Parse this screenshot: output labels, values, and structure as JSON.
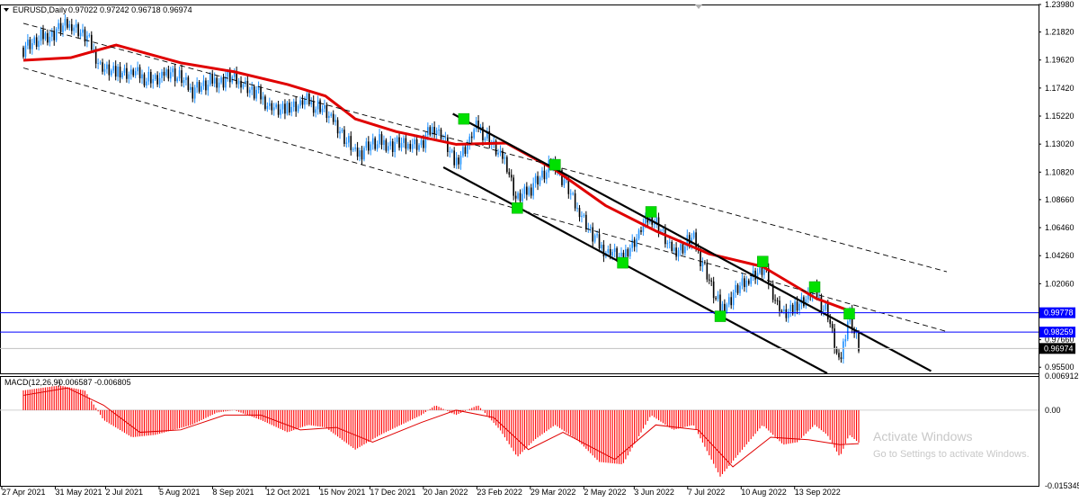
{
  "header": {
    "symbol": "EURUSD,Daily",
    "ohlc": "0.97022 0.97242 0.96718 0.96974"
  },
  "macd_header": {
    "label": "MACD(12,26,9)",
    "values": "-0.006587 -0.006805"
  },
  "watermark": {
    "title": "Activate Windows",
    "subtitle": "Go to Settings to activate Windows."
  },
  "colors": {
    "bull_candle": "#1e90ff",
    "bear_candle": "#000000",
    "moving_average": "#e00000",
    "macd_histogram": "#ff0000",
    "signal_line": "#e00000",
    "level_lines": "#0000ff",
    "markers": "#00e000"
  },
  "chart_data": [
    {
      "type": "candlestick",
      "title": "EURUSD,Daily",
      "x_tick_labels": [
        "27 Apr 2021",
        "31 May 2021",
        "2 Jul 2021",
        "5 Aug 2021",
        "8 Sep 2021",
        "12 Oct 2021",
        "15 Nov 2021",
        "17 Dec 2021",
        "20 Jan 2022",
        "23 Feb 2022",
        "29 Mar 2022",
        "2 May 2022",
        "3 Jun 2022",
        "7 Jul 2022",
        "10 Aug 2022",
        "13 Sep 2022"
      ],
      "y_tick_labels": [
        "1.23980",
        "1.21820",
        "1.19620",
        "1.17420",
        "1.15220",
        "1.13020",
        "1.10820",
        "1.08660",
        "1.06460",
        "1.04260",
        "1.02060",
        "0.99860",
        "0.97660",
        "0.95500"
      ],
      "ylim": [
        0.9502,
        1.2398
      ],
      "current_price": 0.96974,
      "price_labels": [
        "0.99778",
        "0.98259",
        "0.96974"
      ],
      "horizontal_levels": [
        0.99778,
        0.98259
      ],
      "close_path": [
        {
          "x": "2021-04-27",
          "y": 1.206
        },
        {
          "x": "2021-05-20",
          "y": 1.22
        },
        {
          "x": "2021-05-25",
          "y": 1.225
        },
        {
          "x": "2021-06-05",
          "y": 1.216
        },
        {
          "x": "2021-06-17",
          "y": 1.188
        },
        {
          "x": "2021-07-05",
          "y": 1.186
        },
        {
          "x": "2021-07-20",
          "y": 1.18
        },
        {
          "x": "2021-07-30",
          "y": 1.188
        },
        {
          "x": "2021-08-12",
          "y": 1.173
        },
        {
          "x": "2021-08-28",
          "y": 1.18
        },
        {
          "x": "2021-09-08",
          "y": 1.182
        },
        {
          "x": "2021-09-22",
          "y": 1.17
        },
        {
          "x": "2021-10-05",
          "y": 1.156
        },
        {
          "x": "2021-10-25",
          "y": 1.164
        },
        {
          "x": "2021-11-05",
          "y": 1.156
        },
        {
          "x": "2021-11-15",
          "y": 1.14
        },
        {
          "x": "2021-11-24",
          "y": 1.122
        },
        {
          "x": "2021-12-05",
          "y": 1.131
        },
        {
          "x": "2021-12-20",
          "y": 1.13
        },
        {
          "x": "2022-01-05",
          "y": 1.13
        },
        {
          "x": "2022-01-14",
          "y": 1.145
        },
        {
          "x": "2022-01-27",
          "y": 1.115
        },
        {
          "x": "2022-02-10",
          "y": 1.145
        },
        {
          "x": "2022-02-28",
          "y": 1.115
        },
        {
          "x": "2022-03-07",
          "y": 1.085
        },
        {
          "x": "2022-03-18",
          "y": 1.1
        },
        {
          "x": "2022-03-31",
          "y": 1.115
        },
        {
          "x": "2022-04-14",
          "y": 1.08
        },
        {
          "x": "2022-04-28",
          "y": 1.05
        },
        {
          "x": "2022-05-13",
          "y": 1.04
        },
        {
          "x": "2022-05-31",
          "y": 1.075
        },
        {
          "x": "2022-06-14",
          "y": 1.045
        },
        {
          "x": "2022-06-27",
          "y": 1.056
        },
        {
          "x": "2022-07-14",
          "y": 1.0
        },
        {
          "x": "2022-07-28",
          "y": 1.02
        },
        {
          "x": "2022-08-10",
          "y": 1.033
        },
        {
          "x": "2022-08-23",
          "y": 0.995
        },
        {
          "x": "2022-09-12",
          "y": 1.015
        },
        {
          "x": "2022-09-20",
          "y": 0.998
        },
        {
          "x": "2022-09-28",
          "y": 0.956
        },
        {
          "x": "2022-10-04",
          "y": 0.999
        },
        {
          "x": "2022-10-10",
          "y": 0.9697
        }
      ],
      "moving_average": [
        {
          "x": "2021-04-27",
          "y": 1.196
        },
        {
          "x": "2021-05-27",
          "y": 1.198
        },
        {
          "x": "2021-06-25",
          "y": 1.208
        },
        {
          "x": "2021-08-05",
          "y": 1.194
        },
        {
          "x": "2021-09-08",
          "y": 1.187
        },
        {
          "x": "2021-10-12",
          "y": 1.177
        },
        {
          "x": "2021-11-05",
          "y": 1.168
        },
        {
          "x": "2021-11-24",
          "y": 1.15
        },
        {
          "x": "2021-12-20",
          "y": 1.14
        },
        {
          "x": "2022-01-27",
          "y": 1.13
        },
        {
          "x": "2022-02-28",
          "y": 1.131
        },
        {
          "x": "2022-03-31",
          "y": 1.11
        },
        {
          "x": "2022-05-02",
          "y": 1.082
        },
        {
          "x": "2022-06-03",
          "y": 1.062
        },
        {
          "x": "2022-07-07",
          "y": 1.044
        },
        {
          "x": "2022-08-10",
          "y": 1.034
        },
        {
          "x": "2022-09-13",
          "y": 1.009
        },
        {
          "x": "2022-10-07",
          "y": 0.998
        }
      ],
      "channel_lines": [
        {
          "style": "dashed",
          "start": {
            "x": "2021-04-27",
            "y": 1.225
          },
          "end": {
            "x": "2022-12-05",
            "y": 1.03
          }
        },
        {
          "style": "dashed",
          "start": {
            "x": "2021-04-27",
            "y": 1.19
          },
          "end": {
            "x": "2022-12-05",
            "y": 0.983
          }
        },
        {
          "style": "solid",
          "start": {
            "x": "2022-01-25",
            "y": 1.154
          },
          "end": {
            "x": "2022-11-25",
            "y": 0.952
          }
        },
        {
          "style": "solid",
          "start": {
            "x": "2022-01-19",
            "y": 1.112
          },
          "end": {
            "x": "2022-09-20",
            "y": 0.9502
          }
        }
      ],
      "markers": [
        {
          "x": "2022-02-01",
          "y": 1.15
        },
        {
          "x": "2022-03-07",
          "y": 1.08
        },
        {
          "x": "2022-03-31",
          "y": 1.114
        },
        {
          "x": "2022-05-13",
          "y": 1.037
        },
        {
          "x": "2022-05-31",
          "y": 1.077
        },
        {
          "x": "2022-07-14",
          "y": 0.995
        },
        {
          "x": "2022-08-10",
          "y": 1.038
        },
        {
          "x": "2022-09-12",
          "y": 1.018
        },
        {
          "x": "2022-10-04",
          "y": 0.997
        }
      ]
    },
    {
      "type": "bar",
      "title": "MACD(12,26,9)",
      "y_tick_labels": [
        "0.006912",
        "0.00",
        "-0.015345"
      ],
      "ylim": [
        -0.015345,
        0.006912
      ],
      "histogram_path": [
        {
          "x": "2021-04-27",
          "y": 0.004
        },
        {
          "x": "2021-05-20",
          "y": 0.005
        },
        {
          "x": "2021-06-05",
          "y": 0.004
        },
        {
          "x": "2021-06-17",
          "y": -0.002
        },
        {
          "x": "2021-07-05",
          "y": -0.0055
        },
        {
          "x": "2021-07-20",
          "y": -0.005
        },
        {
          "x": "2021-08-12",
          "y": -0.003
        },
        {
          "x": "2021-08-28",
          "y": -0.0005
        },
        {
          "x": "2021-09-08",
          "y": 0.0
        },
        {
          "x": "2021-09-25",
          "y": -0.002
        },
        {
          "x": "2021-10-12",
          "y": -0.0045
        },
        {
          "x": "2021-10-25",
          "y": -0.003
        },
        {
          "x": "2021-11-05",
          "y": -0.0035
        },
        {
          "x": "2021-11-24",
          "y": -0.008
        },
        {
          "x": "2021-12-10",
          "y": -0.005
        },
        {
          "x": "2022-01-05",
          "y": -0.001
        },
        {
          "x": "2022-01-14",
          "y": 0.001
        },
        {
          "x": "2022-01-27",
          "y": -0.001
        },
        {
          "x": "2022-02-10",
          "y": 0.001
        },
        {
          "x": "2022-02-24",
          "y": -0.004
        },
        {
          "x": "2022-03-07",
          "y": -0.0095
        },
        {
          "x": "2022-03-18",
          "y": -0.006
        },
        {
          "x": "2022-03-31",
          "y": -0.003
        },
        {
          "x": "2022-04-14",
          "y": -0.006
        },
        {
          "x": "2022-04-28",
          "y": -0.0105
        },
        {
          "x": "2022-05-13",
          "y": -0.011
        },
        {
          "x": "2022-05-31",
          "y": -0.001
        },
        {
          "x": "2022-06-14",
          "y": -0.004
        },
        {
          "x": "2022-06-27",
          "y": -0.003
        },
        {
          "x": "2022-07-14",
          "y": -0.0135
        },
        {
          "x": "2022-07-28",
          "y": -0.008
        },
        {
          "x": "2022-08-10",
          "y": -0.003
        },
        {
          "x": "2022-08-23",
          "y": -0.007
        },
        {
          "x": "2022-09-01",
          "y": -0.0065
        },
        {
          "x": "2022-09-12",
          "y": -0.003
        },
        {
          "x": "2022-09-20",
          "y": -0.005
        },
        {
          "x": "2022-09-28",
          "y": -0.0095
        },
        {
          "x": "2022-10-04",
          "y": -0.005
        },
        {
          "x": "2022-10-10",
          "y": -0.0066
        }
      ],
      "signal_line": [
        {
          "x": "2021-04-27",
          "y": 0.003
        },
        {
          "x": "2021-05-25",
          "y": 0.0045
        },
        {
          "x": "2021-06-17",
          "y": 0.001
        },
        {
          "x": "2021-07-10",
          "y": -0.0045
        },
        {
          "x": "2021-08-05",
          "y": -0.004
        },
        {
          "x": "2021-09-02",
          "y": -0.001
        },
        {
          "x": "2021-09-25",
          "y": -0.001
        },
        {
          "x": "2021-10-20",
          "y": -0.004
        },
        {
          "x": "2021-11-12",
          "y": -0.0035
        },
        {
          "x": "2021-12-05",
          "y": -0.0065
        },
        {
          "x": "2022-01-05",
          "y": -0.0025
        },
        {
          "x": "2022-01-27",
          "y": 0.0
        },
        {
          "x": "2022-02-20",
          "y": -0.0015
        },
        {
          "x": "2022-03-14",
          "y": -0.008
        },
        {
          "x": "2022-04-05",
          "y": -0.0045
        },
        {
          "x": "2022-05-08",
          "y": -0.01
        },
        {
          "x": "2022-06-03",
          "y": -0.003
        },
        {
          "x": "2022-06-30",
          "y": -0.004
        },
        {
          "x": "2022-07-22",
          "y": -0.0115
        },
        {
          "x": "2022-08-15",
          "y": -0.0055
        },
        {
          "x": "2022-09-08",
          "y": -0.006
        },
        {
          "x": "2022-09-28",
          "y": -0.007
        },
        {
          "x": "2022-10-10",
          "y": -0.0068
        }
      ]
    }
  ]
}
